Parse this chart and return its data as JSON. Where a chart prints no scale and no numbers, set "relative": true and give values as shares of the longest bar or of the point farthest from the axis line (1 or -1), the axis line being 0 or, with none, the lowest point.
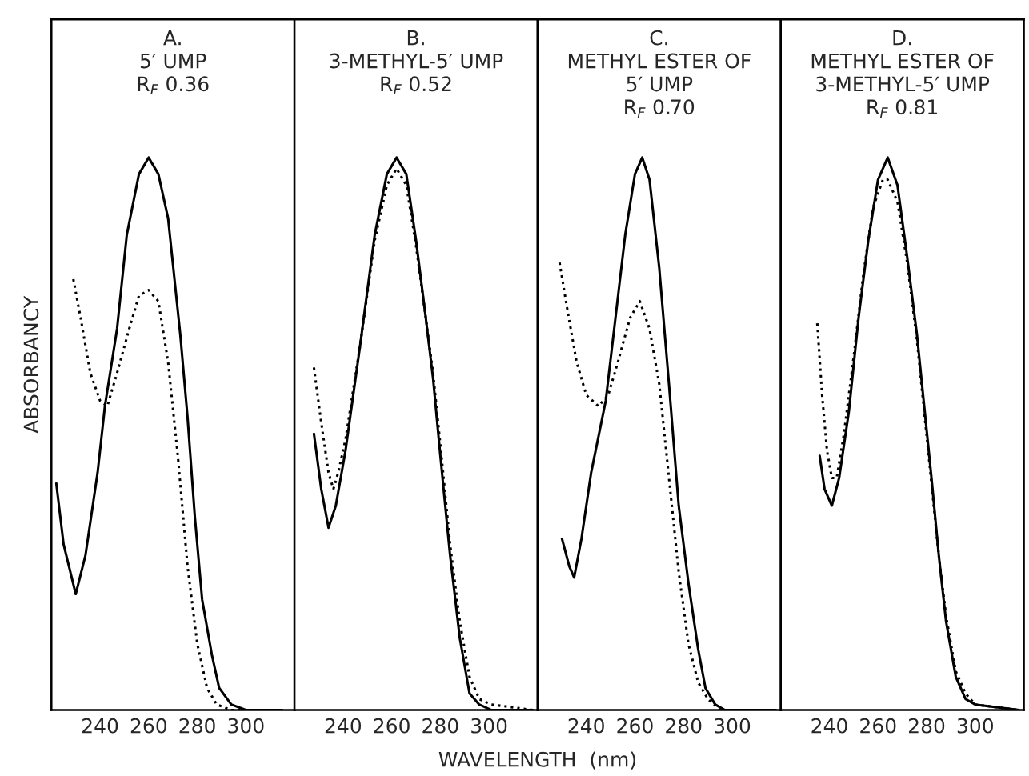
{
  "chart_data": [
    {
      "type": "line",
      "title": "A.\n5′ UMP\nR$_{F}$ 0.36",
      "ylabel": "ABSORBANCY",
      "relative": true,
      "xlim": [
        220,
        320
      ],
      "xticks": [
        240,
        260,
        280,
        300
      ],
      "series": [
        {
          "color": "#000000",
          "line_style": "solid",
          "x": [
            222,
            225,
            230,
            234,
            239,
            242,
            247,
            251,
            256,
            260,
            264,
            268,
            273,
            276,
            279,
            282,
            286,
            289,
            294,
            300,
            315
          ],
          "values": [
            0.41,
            0.3,
            0.21,
            0.28,
            0.43,
            0.55,
            0.69,
            0.86,
            0.97,
            1.0,
            0.97,
            0.89,
            0.68,
            0.53,
            0.35,
            0.2,
            0.1,
            0.04,
            0.01,
            0,
            0
          ]
        },
        {
          "color": "#000000",
          "line_style": "dotted",
          "x": [
            229,
            232,
            236,
            240,
            243,
            247,
            252,
            256,
            260,
            264,
            268,
            272,
            276,
            280,
            284,
            288,
            294,
            315
          ],
          "values": [
            0.78,
            0.71,
            0.61,
            0.56,
            0.55,
            0.61,
            0.69,
            0.75,
            0.76,
            0.74,
            0.63,
            0.46,
            0.26,
            0.12,
            0.04,
            0.01,
            0,
            0
          ]
        }
      ]
    },
    {
      "type": "line",
      "title": "B.\n3-METHYL-5′ UMP\nR$_{F}$ 0.52",
      "xlabel": "WAVELENGTH  (nm)",
      "relative": true,
      "xlim": [
        220,
        320
      ],
      "xticks": [
        240,
        260,
        280,
        300
      ],
      "series": [
        {
          "color": "#000000",
          "line_style": "solid",
          "x": [
            228,
            231,
            234,
            237,
            241,
            247,
            253,
            258,
            262,
            266,
            270,
            274,
            277,
            280,
            284,
            288,
            292,
            296,
            301,
            318
          ],
          "values": [
            0.5,
            0.4,
            0.33,
            0.37,
            0.47,
            0.66,
            0.86,
            0.97,
            1.0,
            0.97,
            0.85,
            0.71,
            0.6,
            0.46,
            0.28,
            0.13,
            0.03,
            0.01,
            0,
            0
          ]
        },
        {
          "color": "#000000",
          "line_style": "dotted",
          "x": [
            228,
            231,
            234,
            236,
            238,
            241,
            247,
            253,
            258,
            262,
            266,
            270,
            274,
            277,
            280,
            284,
            288,
            292,
            296,
            301,
            318
          ],
          "values": [
            0.62,
            0.52,
            0.43,
            0.4,
            0.43,
            0.49,
            0.66,
            0.85,
            0.95,
            0.98,
            0.95,
            0.84,
            0.71,
            0.61,
            0.48,
            0.3,
            0.16,
            0.06,
            0.02,
            0.01,
            0
          ]
        }
      ]
    },
    {
      "type": "line",
      "title": "C.\nMETHYL ESTER OF\n5′ UMP\nR$_{F}$ 0.70",
      "relative": true,
      "xlim": [
        220,
        320
      ],
      "xticks": [
        240,
        260,
        280,
        300
      ],
      "series": [
        {
          "color": "#000000",
          "line_style": "solid",
          "x": [
            230,
            233,
            235,
            238,
            242,
            248,
            252,
            256,
            260,
            263,
            266,
            270,
            274,
            278,
            282,
            286,
            289,
            293,
            297,
            300,
            318
          ],
          "values": [
            0.31,
            0.26,
            0.24,
            0.31,
            0.43,
            0.56,
            0.71,
            0.86,
            0.97,
            1.0,
            0.96,
            0.8,
            0.59,
            0.37,
            0.23,
            0.11,
            0.04,
            0.01,
            0,
            0,
            0
          ]
        },
        {
          "color": "#000000",
          "line_style": "dotted",
          "x": [
            229,
            232,
            236,
            240,
            245,
            249,
            253,
            258,
            262,
            266,
            270,
            274,
            278,
            282,
            286,
            290,
            295,
            318
          ],
          "values": [
            0.81,
            0.73,
            0.63,
            0.57,
            0.55,
            0.57,
            0.63,
            0.71,
            0.74,
            0.69,
            0.59,
            0.42,
            0.25,
            0.12,
            0.05,
            0.02,
            0,
            0
          ]
        }
      ]
    },
    {
      "type": "line",
      "title": "D.\nMETHYL ESTER OF\n3-METHYL-5′ UMP\nR$_{F}$ 0.81",
      "relative": true,
      "xlim": [
        220,
        320
      ],
      "xticks": [
        240,
        260,
        280,
        300
      ],
      "series": [
        {
          "color": "#000000",
          "line_style": "solid",
          "x": [
            236,
            238,
            241,
            244,
            248,
            252,
            256,
            260,
            264,
            268,
            272,
            276,
            279,
            282,
            285,
            288,
            292,
            296,
            300,
            318
          ],
          "values": [
            0.46,
            0.4,
            0.37,
            0.42,
            0.54,
            0.71,
            0.85,
            0.96,
            1.0,
            0.95,
            0.82,
            0.68,
            0.55,
            0.42,
            0.28,
            0.16,
            0.06,
            0.02,
            0.01,
            0
          ]
        },
        {
          "color": "#000000",
          "line_style": "dotted",
          "x": [
            235,
            237,
            239,
            241,
            243,
            246,
            250,
            254,
            258,
            262,
            264,
            268,
            272,
            276,
            279,
            282,
            285,
            288,
            292,
            296,
            300,
            318
          ],
          "values": [
            0.7,
            0.57,
            0.47,
            0.42,
            0.42,
            0.5,
            0.64,
            0.79,
            0.91,
            0.96,
            0.96,
            0.92,
            0.81,
            0.67,
            0.54,
            0.41,
            0.28,
            0.17,
            0.07,
            0.03,
            0.01,
            0
          ]
        }
      ]
    }
  ]
}
